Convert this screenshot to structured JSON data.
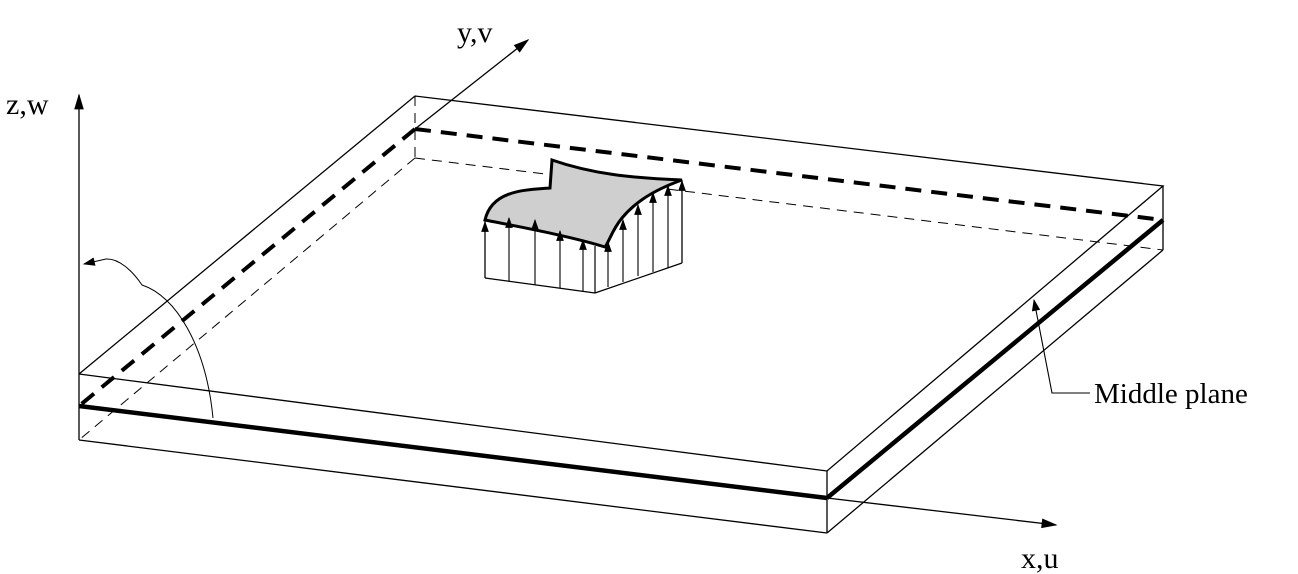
{
  "labels": {
    "z_axis": "z,w",
    "y_axis": "y,v",
    "x_axis": "x,u",
    "middle_plane": "Middle plane"
  },
  "colors": {
    "ink": "#000000",
    "load_surface_fill": "#cfcfcf",
    "background": "#ffffff"
  }
}
